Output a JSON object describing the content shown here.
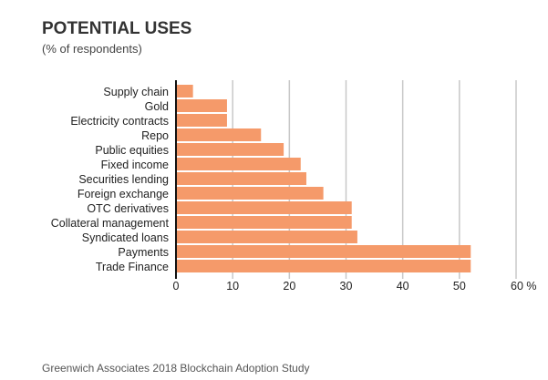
{
  "chart_data": {
    "type": "bar",
    "orientation": "horizontal",
    "title": "POTENTIAL USES",
    "subtitle": "(% of respondents)",
    "categories": [
      "Supply chain",
      "Gold",
      "Electricity contracts",
      "Repo",
      "Public equities",
      "Fixed income",
      "Securities lending",
      "Foreign exchange",
      "OTC derivatives",
      "Collateral management",
      "Syndicated loans",
      "Payments",
      "Trade Finance"
    ],
    "values": [
      3,
      9,
      9,
      15,
      19,
      22,
      23,
      26,
      31,
      31,
      32,
      52,
      52
    ],
    "xlim": [
      0,
      60
    ],
    "xticks": [
      0,
      10,
      20,
      30,
      40,
      50,
      60
    ],
    "xtick_labels": [
      "0",
      "10",
      "20",
      "30",
      "40",
      "50",
      "60 %"
    ],
    "bar_color": "#f59a6a",
    "grid": true,
    "source": "Greenwich Associates 2018 Blockchain Adoption Study"
  }
}
